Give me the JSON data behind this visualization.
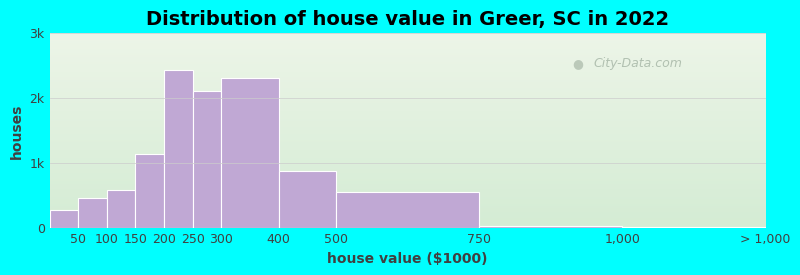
{
  "title": "Distribution of house value in Greer, SC in 2022",
  "xlabel": "house value ($1000)",
  "ylabel": "houses",
  "bar_color": "#c0a8d4",
  "bar_edgecolor": "#ffffff",
  "background_outer": "#00ffff",
  "ylim": [
    0,
    3000
  ],
  "yticks": [
    0,
    1000,
    2000,
    3000
  ],
  "ytick_labels": [
    "0",
    "1k",
    "2k",
    "3k"
  ],
  "title_fontsize": 14,
  "axis_fontsize": 10,
  "tick_fontsize": 9,
  "values": [
    270,
    460,
    580,
    1130,
    2420,
    2100,
    2300,
    870,
    540,
    20,
    15
  ],
  "bin_lefts": [
    0,
    50,
    100,
    150,
    200,
    250,
    300,
    400,
    500,
    750,
    1000
  ],
  "bin_rights": [
    50,
    100,
    150,
    200,
    250,
    300,
    400,
    500,
    750,
    1000,
    1250
  ],
  "tick_positions": [
    0,
    50,
    100,
    150,
    200,
    250,
    300,
    400,
    500,
    750,
    1000,
    1250
  ],
  "tick_labels": [
    "",
    "50",
    "100",
    "150",
    "200",
    "250",
    "300",
    "400",
    "500",
    "750",
    "1,000",
    "> 1,000"
  ],
  "watermark_text": "City-Data.com",
  "grid_color": "#cccccc",
  "text_color": "#404040"
}
